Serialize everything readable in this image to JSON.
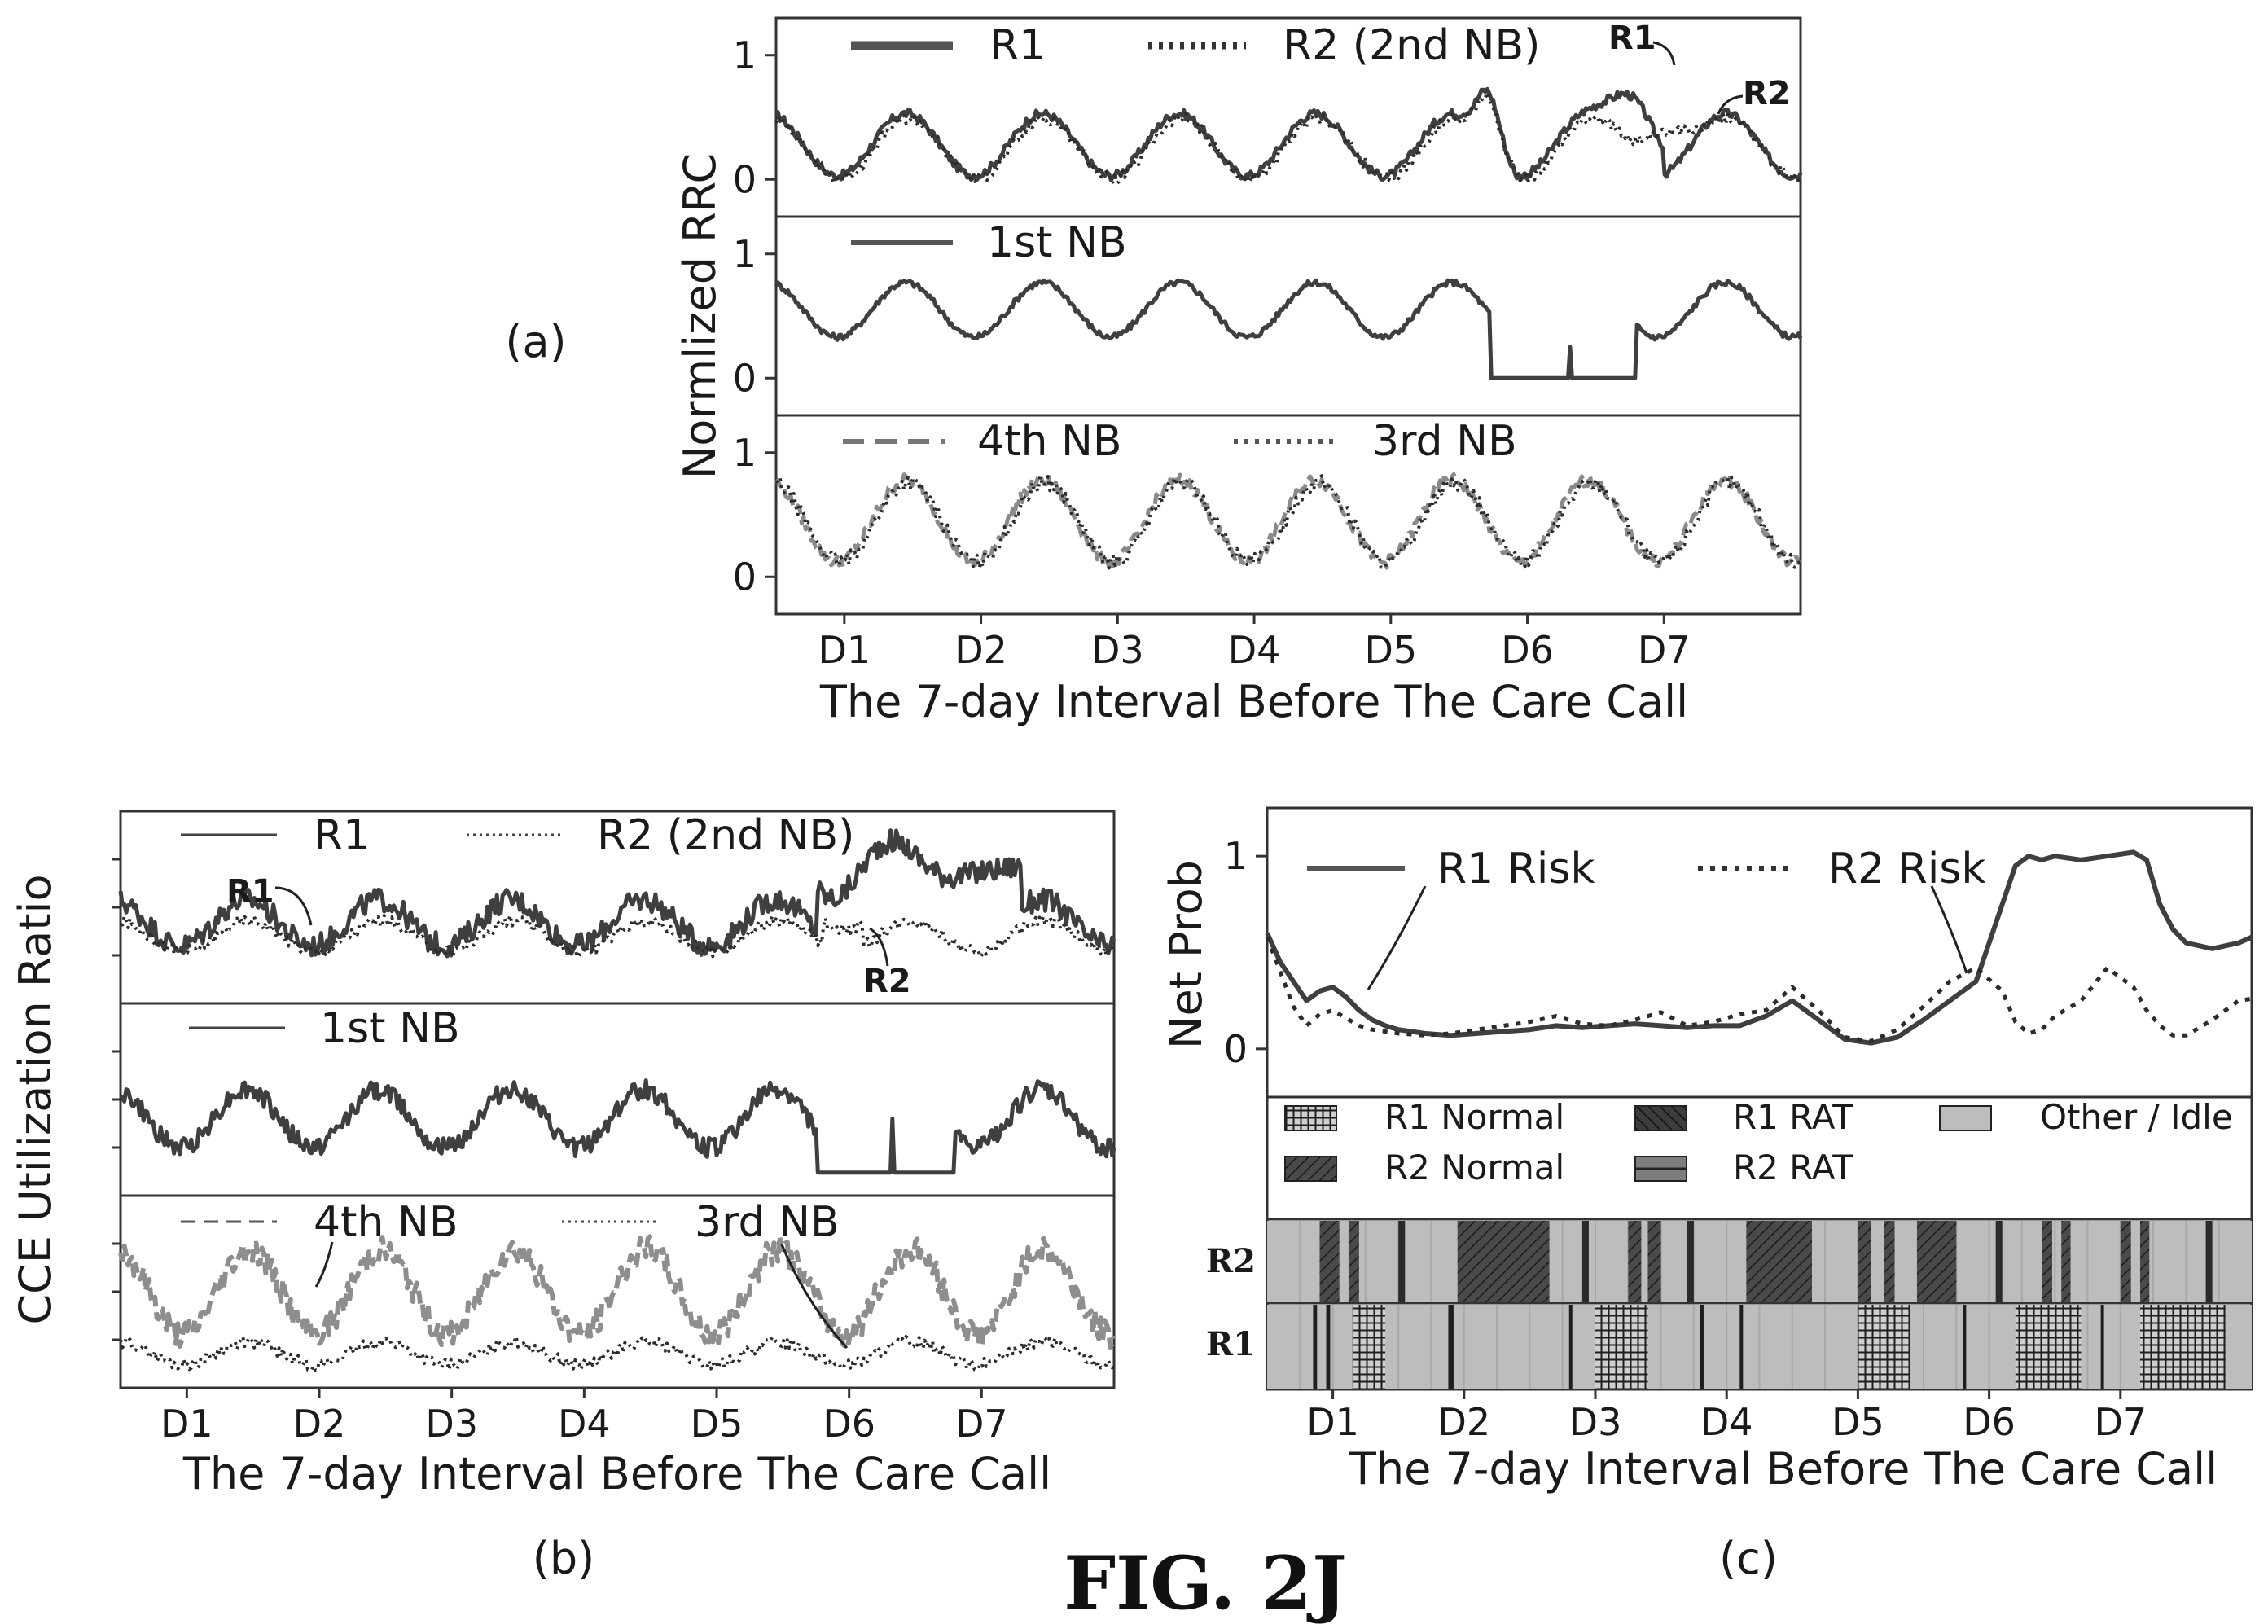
{
  "figure_title": "FIG. 2J",
  "colors": {
    "dark": "#3f3f3f",
    "mid": "#707070",
    "light": "#8e8e8e",
    "idle": "#bdbdbd",
    "frame": "#333333"
  },
  "chart_data": [
    {
      "id": "a",
      "panel_label": "(a)",
      "type": "line",
      "ylabel": "Normlized RRC",
      "xlabel": "The 7-day Interval Before The Care Call",
      "categories": [
        "D1",
        "D2",
        "D3",
        "D4",
        "D5",
        "D6",
        "D7"
      ],
      "subplots": [
        {
          "ylim": [
            -0.3,
            1.3
          ],
          "yticks": [
            0,
            1
          ],
          "legend": [
            "R1",
            "R2 (2nd NB)"
          ],
          "annotations": [
            "R1",
            "R2"
          ],
          "series": [
            {
              "name": "R1",
              "style": "solid",
              "profile": "r1_rrc"
            },
            {
              "name": "R2 (2nd NB)",
              "style": "dotted",
              "profile": "r2_rrc"
            }
          ]
        },
        {
          "ylim": [
            -0.3,
            1.3
          ],
          "yticks": [
            0,
            1
          ],
          "legend": [
            "1st NB"
          ],
          "series": [
            {
              "name": "1st NB",
              "style": "solid",
              "profile": "nb1_rrc"
            }
          ]
        },
        {
          "ylim": [
            -0.3,
            1.3
          ],
          "yticks": [
            0,
            1
          ],
          "legend": [
            "4th NB",
            "3rd NB"
          ],
          "series": [
            {
              "name": "4th NB",
              "style": "dashed",
              "profile": "nb4_rrc"
            },
            {
              "name": "3rd NB",
              "style": "dotted",
              "profile": "nb3_rrc"
            }
          ]
        }
      ]
    },
    {
      "id": "b",
      "panel_label": "(b)",
      "type": "line",
      "ylabel": "CCE Utilization Ratio",
      "xlabel": "The 7-day Interval Before The Care Call",
      "categories": [
        "D1",
        "D2",
        "D3",
        "D4",
        "D5",
        "D6",
        "D7"
      ],
      "subplots": [
        {
          "ylim": [
            0,
            1
          ],
          "legend": [
            "R1",
            "R2 (2nd NB)"
          ],
          "annotations": [
            "R1",
            "R2"
          ],
          "series": [
            {
              "name": "R1",
              "style": "solid",
              "profile": "r1_cce"
            },
            {
              "name": "R2 (2nd NB)",
              "style": "dotted",
              "profile": "r2_cce"
            }
          ]
        },
        {
          "ylim": [
            0,
            1
          ],
          "legend": [
            "1st NB"
          ],
          "series": [
            {
              "name": "1st NB",
              "style": "solid",
              "profile": "nb1_cce"
            }
          ]
        },
        {
          "ylim": [
            0,
            1
          ],
          "legend": [
            "4th NB",
            "3rd NB"
          ],
          "series": [
            {
              "name": "4th NB",
              "style": "dashed",
              "profile": "nb4_cce"
            },
            {
              "name": "3rd NB",
              "style": "dotted",
              "profile": "nb3_cce"
            }
          ]
        }
      ]
    },
    {
      "id": "c",
      "panel_label": "(c)",
      "type": "line",
      "ylabel": "Net Prob",
      "xlabel": "The 7-day Interval Before The Care Call",
      "categories": [
        "D1",
        "D2",
        "D3",
        "D4",
        "D5",
        "D6",
        "D7"
      ],
      "ylim": [
        -0.25,
        1.25
      ],
      "yticks": [
        0,
        1
      ],
      "x": [
        0.0,
        0.1,
        0.2,
        0.3,
        0.4,
        0.5,
        0.6,
        0.7,
        0.8,
        0.9,
        1.0,
        1.2,
        1.4,
        1.6,
        1.8,
        2.0,
        2.2,
        2.4,
        2.6,
        2.8,
        3.0,
        3.2,
        3.4,
        3.6,
        3.8,
        4.0,
        4.2,
        4.4,
        4.6,
        4.8,
        5.0,
        5.2,
        5.4,
        5.6,
        5.7,
        5.8,
        5.9,
        6.0,
        6.2,
        6.4,
        6.6,
        6.7,
        6.8,
        6.9,
        7.0,
        7.2,
        7.4,
        7.5
      ],
      "series": [
        {
          "name": "R1 Risk",
          "style": "solid",
          "values": [
            0.6,
            0.45,
            0.35,
            0.25,
            0.3,
            0.32,
            0.27,
            0.2,
            0.15,
            0.12,
            0.1,
            0.08,
            0.07,
            0.08,
            0.09,
            0.1,
            0.12,
            0.11,
            0.12,
            0.13,
            0.12,
            0.11,
            0.12,
            0.12,
            0.17,
            0.25,
            0.15,
            0.05,
            0.03,
            0.06,
            0.15,
            0.25,
            0.35,
            0.75,
            0.95,
            1.0,
            0.98,
            1.0,
            0.98,
            1.0,
            1.02,
            0.98,
            0.75,
            0.62,
            0.55,
            0.52,
            0.55,
            0.58
          ]
        },
        {
          "name": "R2 Risk",
          "style": "dotted",
          "values": [
            0.58,
            0.4,
            0.22,
            0.12,
            0.18,
            0.2,
            0.16,
            0.12,
            0.1,
            0.09,
            0.08,
            0.07,
            0.08,
            0.1,
            0.12,
            0.14,
            0.17,
            0.13,
            0.12,
            0.15,
            0.19,
            0.12,
            0.14,
            0.18,
            0.2,
            0.32,
            0.2,
            0.06,
            0.04,
            0.1,
            0.22,
            0.35,
            0.42,
            0.3,
            0.14,
            0.08,
            0.1,
            0.17,
            0.25,
            0.42,
            0.32,
            0.2,
            0.12,
            0.07,
            0.07,
            0.15,
            0.25,
            0.26
          ]
        }
      ],
      "state_legend": [
        "R1 Normal",
        "R1 RAT",
        "Other / Idle",
        "R2 Normal",
        "R2 RAT"
      ],
      "state_rows": [
        "R2",
        "R1"
      ],
      "state_segments": {
        "R2": [
          [
            0.4,
            0.55,
            "R2 Normal"
          ],
          [
            0.62,
            0.7,
            "R2 Normal"
          ],
          [
            1.0,
            1.05,
            "R2 RAT"
          ],
          [
            1.45,
            2.15,
            "R2 Normal"
          ],
          [
            2.4,
            2.45,
            "R2 RAT"
          ],
          [
            2.75,
            2.85,
            "R2 Normal"
          ],
          [
            2.9,
            3.0,
            "R2 Normal"
          ],
          [
            3.2,
            3.25,
            "R2 RAT"
          ],
          [
            3.65,
            4.15,
            "R2 Normal"
          ],
          [
            4.5,
            4.6,
            "R2 Normal"
          ],
          [
            4.7,
            4.78,
            "R2 Normal"
          ],
          [
            4.95,
            5.25,
            "R2 Normal"
          ],
          [
            5.55,
            5.6,
            "R2 RAT"
          ],
          [
            5.9,
            5.98,
            "R2 Normal"
          ],
          [
            6.05,
            6.12,
            "R2 Normal"
          ],
          [
            6.5,
            6.58,
            "R2 Normal"
          ],
          [
            6.65,
            6.72,
            "R2 Normal"
          ],
          [
            7.15,
            7.2,
            "R2 RAT"
          ]
        ],
        "R1": [
          [
            0.35,
            0.38,
            "R1 RAT"
          ],
          [
            0.45,
            0.48,
            "R1 RAT"
          ],
          [
            0.65,
            0.9,
            "R1 Normal"
          ],
          [
            1.38,
            1.42,
            "R1 RAT"
          ],
          [
            2.3,
            2.32,
            "R1 RAT"
          ],
          [
            2.5,
            2.9,
            "R1 Normal"
          ],
          [
            3.3,
            3.32,
            "R1 RAT"
          ],
          [
            3.6,
            3.62,
            "R1 RAT"
          ],
          [
            4.5,
            4.9,
            "R1 Normal"
          ],
          [
            5.3,
            5.32,
            "R1 RAT"
          ],
          [
            5.7,
            6.2,
            "R1 Normal"
          ],
          [
            6.35,
            6.37,
            "R1 RAT"
          ],
          [
            6.65,
            7.3,
            "R1 Normal"
          ]
        ]
      }
    }
  ]
}
